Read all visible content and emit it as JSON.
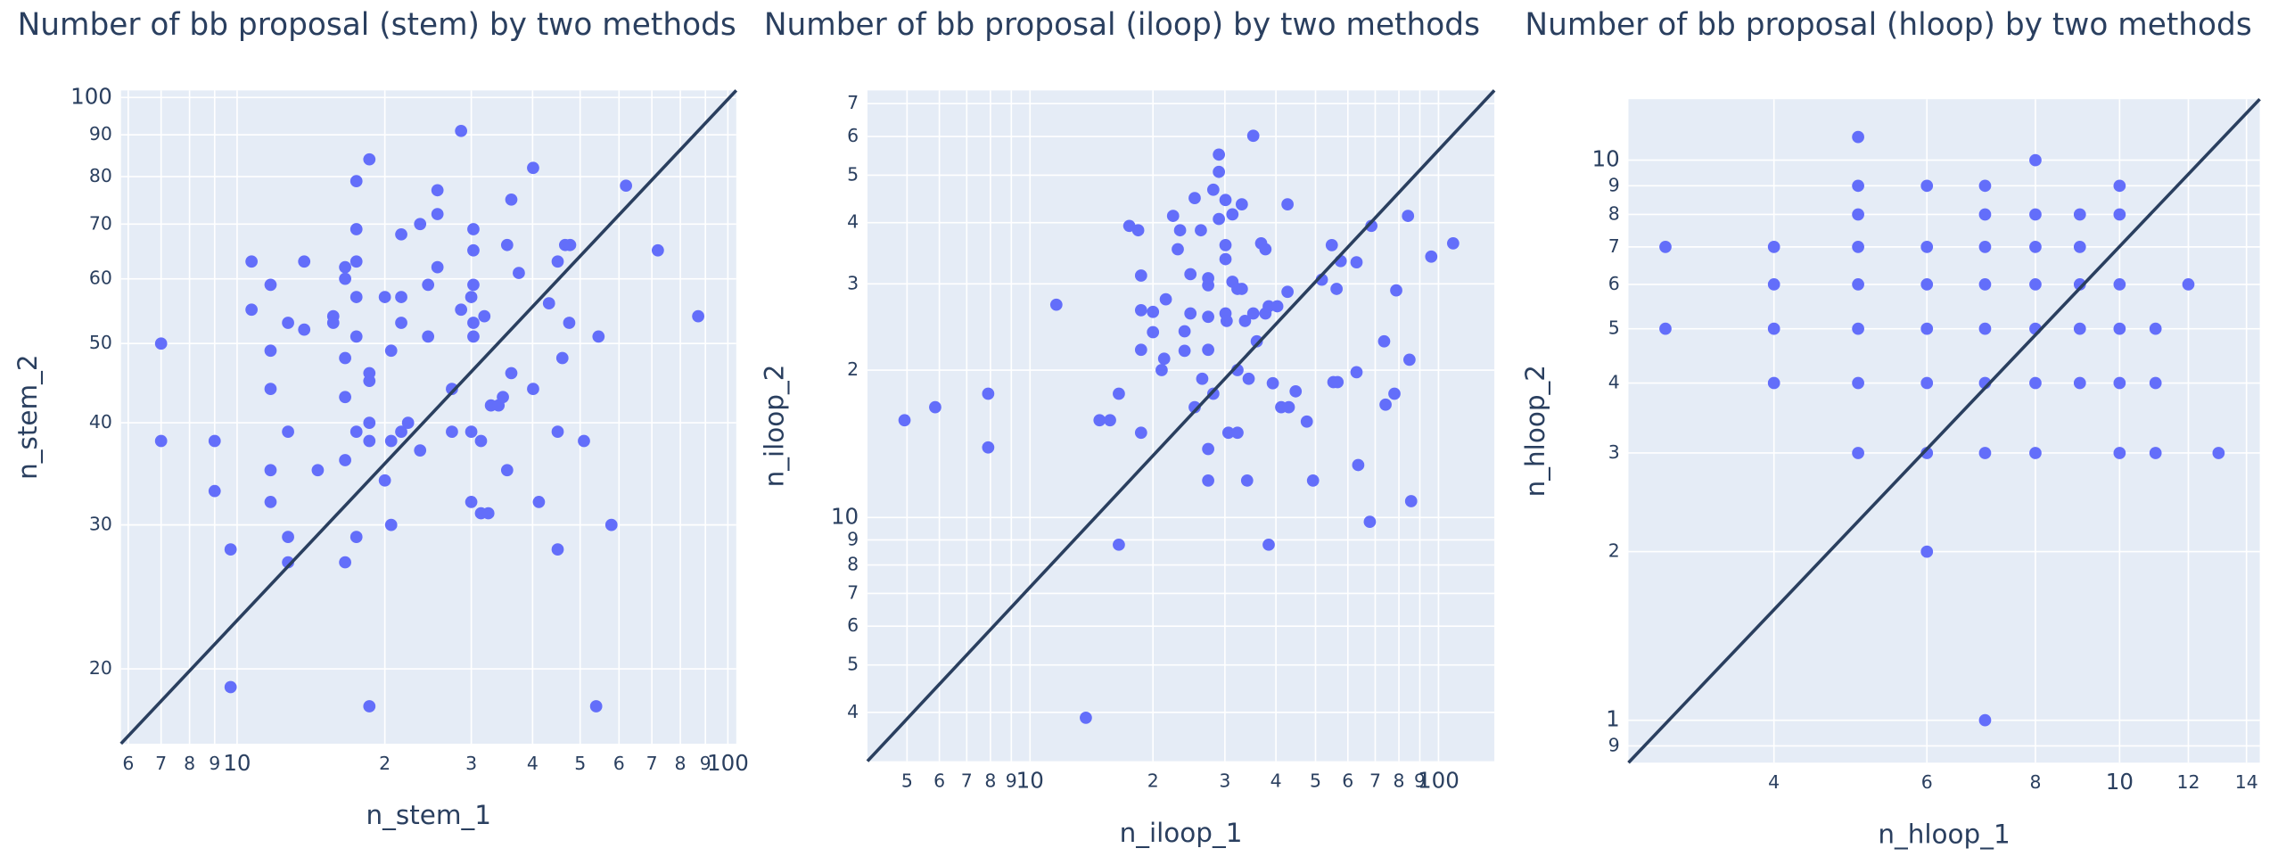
{
  "chart_data": [
    {
      "type": "scatter",
      "title": "Number of bb proposal (stem) by two methods",
      "x_label": "n_stem_1",
      "y_label": "n_stem_2",
      "log_x": true,
      "log_y": true,
      "grid": true,
      "color": "#636efa",
      "xlim": [
        5.8,
        104
      ],
      "ylim": [
        16.2,
        102
      ],
      "xticks": [
        6,
        7,
        8,
        9,
        10,
        {
          "value": 20,
          "label": "2"
        },
        {
          "value": 30,
          "label": "3"
        },
        {
          "value": 40,
          "label": "4"
        },
        {
          "value": 50,
          "label": "5"
        },
        {
          "value": 60,
          "label": "6"
        },
        {
          "value": 70,
          "label": "7"
        },
        {
          "value": 80,
          "label": "8"
        },
        {
          "value": 90,
          "label": "9"
        },
        100
      ],
      "yticks": [
        20,
        30,
        40,
        50,
        60,
        70,
        80,
        90,
        100
      ],
      "x": [
        7,
        7,
        9,
        9,
        9.7,
        9.7,
        10.7,
        10.7,
        11.7,
        11.7,
        11.7,
        11.7,
        11.7,
        12.7,
        12.7,
        12.7,
        12.7,
        13.7,
        13.7,
        14.6,
        15.7,
        15.7,
        16.6,
        16.6,
        16.6,
        16.6,
        16.6,
        16.6,
        17.5,
        17.5,
        17.5,
        17.5,
        17.5,
        17.5,
        17.5,
        18.6,
        18.6,
        18.6,
        18.6,
        18.6,
        18.6,
        20,
        20,
        20.6,
        20.6,
        20.6,
        21.6,
        21.6,
        21.6,
        21.6,
        22.3,
        23.6,
        23.6,
        24.5,
        24.5,
        25.6,
        25.6,
        25.6,
        27.4,
        27.4,
        28.6,
        28.6,
        30,
        30,
        30,
        30.3,
        30.3,
        30.3,
        30.3,
        30.3,
        31.4,
        31.4,
        32.5,
        31.9,
        32.9,
        34.1,
        34.8,
        35.5,
        35.5,
        36.2,
        36.2,
        37.5,
        40.1,
        40.1,
        41.2,
        43.2,
        45,
        45,
        45,
        46,
        46.6,
        47.7,
        47.5,
        50.9,
        54.5,
        53.9,
        57.9,
        62,
        72,
        87
      ],
      "y": [
        50,
        38,
        38,
        33,
        28,
        19,
        63,
        55,
        59,
        49,
        44,
        35,
        32,
        53,
        39,
        29,
        27,
        63,
        52,
        35,
        54,
        53,
        62,
        60,
        48,
        43,
        36,
        27,
        79,
        69,
        63,
        57,
        51,
        39,
        29,
        84,
        46,
        45,
        40,
        38,
        18,
        57,
        34,
        49,
        38,
        30,
        68,
        57,
        53,
        39,
        40,
        70,
        37,
        51,
        59,
        77,
        72,
        62,
        39,
        44,
        91,
        55,
        57,
        39,
        32,
        69,
        65,
        59,
        53,
        51,
        38,
        31,
        31,
        54,
        42,
        42,
        43,
        66,
        35,
        75,
        46,
        61,
        82,
        44,
        32,
        56,
        63,
        39,
        28,
        48,
        66,
        66,
        53,
        38,
        51,
        18,
        30,
        78,
        65,
        54
      ],
      "line": {
        "x": [
          5.8,
          104
        ],
        "y": [
          16.2,
          102
        ],
        "color": "#2a3f5f"
      }
    },
    {
      "type": "scatter",
      "title": "Number of bb proposal (iloop) by two methods",
      "x_label": "n_iloop_1",
      "y_label": "n_iloop_2",
      "log_x": true,
      "log_y": true,
      "grid": true,
      "color": "#636efa",
      "xlim": [
        4,
        137
      ],
      "ylim": [
        3.18,
        74.5
      ],
      "xticks": [
        5,
        6,
        7,
        8,
        9,
        10,
        {
          "value": 20,
          "label": "2"
        },
        {
          "value": 30,
          "label": "3"
        },
        {
          "value": 40,
          "label": "4"
        },
        {
          "value": 50,
          "label": "5"
        },
        {
          "value": 60,
          "label": "6"
        },
        {
          "value": 70,
          "label": "7"
        },
        {
          "value": 80,
          "label": "8"
        },
        {
          "value": 90,
          "label": "9"
        },
        100
      ],
      "yticks": [
        4,
        5,
        6,
        7,
        8,
        9,
        10,
        {
          "value": 20,
          "label": "2"
        },
        {
          "value": 30,
          "label": "3"
        },
        {
          "value": 40,
          "label": "4"
        },
        {
          "value": 50,
          "label": "5"
        },
        {
          "value": 60,
          "label": "6"
        },
        {
          "value": 70,
          "label": "7"
        }
      ],
      "x": [
        4.93,
        5.86,
        7.9,
        7.9,
        11.6,
        13.7,
        14.8,
        15.7,
        16.5,
        16.5,
        17.5,
        18.4,
        18.7,
        18.7,
        18.7,
        18.7,
        20,
        20,
        21,
        21.3,
        21.5,
        22.4,
        23,
        23.3,
        23.9,
        23.9,
        24.7,
        24.7,
        25.3,
        25.3,
        26.4,
        26.2,
        27.3,
        27.3,
        27.3,
        27.3,
        27.3,
        27.3,
        28.1,
        28.1,
        29,
        29,
        29,
        30.1,
        30.1,
        30.1,
        30.1,
        30.3,
        30.6,
        31.3,
        31.3,
        32.2,
        32.2,
        32.2,
        33,
        33,
        33.6,
        34,
        34.3,
        35.2,
        35.2,
        35.9,
        36.8,
        37.7,
        37.7,
        38.4,
        38.4,
        39.3,
        40.3,
        41.2,
        42.7,
        42.7,
        43,
        44.7,
        47.6,
        49.3,
        51.8,
        54.8,
        55.3,
        56.6,
        57.6,
        56.3,
        63,
        63,
        63.6,
        67.9,
        68.5,
        73.6,
        74.2,
        78,
        78.8,
        84.2,
        84.9,
        85.7,
        96,
        108.6
      ],
      "y": [
        15.8,
        16.8,
        17.9,
        13.9,
        27.2,
        3.9,
        15.8,
        15.8,
        8.8,
        17.9,
        39.4,
        38.6,
        31.2,
        26.5,
        22,
        14.9,
        26.3,
        23.9,
        20,
        21.1,
        27.9,
        41.3,
        35.3,
        38.6,
        21.9,
        24,
        31.4,
        26.1,
        44.9,
        16.8,
        19.2,
        38.6,
        30.8,
        29.8,
        25.7,
        22,
        13.8,
        11.9,
        46.7,
        17.9,
        55.1,
        50.8,
        40.7,
        44.5,
        36,
        33.7,
        26.1,
        25.2,
        14.9,
        41.6,
        30.3,
        29.3,
        20,
        14.9,
        43.6,
        29.3,
        25.2,
        11.9,
        19.2,
        60.2,
        26.1,
        22.9,
        36.3,
        35.3,
        26.1,
        27,
        8.8,
        18.8,
        27,
        16.8,
        43.6,
        28.9,
        16.8,
        18.1,
        15.7,
        11.9,
        30.6,
        36,
        18.9,
        18.9,
        33.4,
        29.3,
        19.8,
        33.2,
        12.8,
        9.8,
        39.4,
        22.9,
        17,
        17.9,
        29.1,
        41.3,
        21,
        10.8,
        34.1,
        36.3
      ],
      "line": {
        "x": [
          4,
          137
        ],
        "y": [
          3.18,
          74.5
        ],
        "color": "#2a3f5f"
      }
    },
    {
      "type": "scatter",
      "title": "Number of bb proposal (hloop) by two methods",
      "x_label": "n_hloop_1",
      "y_label": "n_hloop_2",
      "log_x": true,
      "log_y": true,
      "grid": true,
      "color": "#636efa",
      "xlim": [
        2.72,
        14.5
      ],
      "ylim": [
        0.84,
        12.85
      ],
      "xticks": [
        4,
        6,
        8,
        10,
        12,
        14
      ],
      "yticks": [
        {
          "value": 0.9,
          "label": "9"
        },
        1,
        2,
        3,
        4,
        5,
        6,
        7,
        8,
        9,
        10
      ],
      "x": [
        3,
        3,
        4,
        4,
        4,
        4,
        5,
        5,
        5,
        5,
        5,
        5,
        5,
        5,
        6,
        6,
        6,
        6,
        6,
        6,
        6,
        7,
        7,
        7,
        7,
        7,
        7,
        7,
        7,
        8,
        8,
        8,
        8,
        8,
        8,
        8,
        9,
        9,
        9,
        9,
        9,
        10,
        10,
        10,
        10,
        10,
        10,
        11,
        11,
        11,
        12,
        13
      ],
      "y": [
        7,
        5,
        7,
        6,
        5,
        4,
        11,
        9,
        8,
        7,
        6,
        5,
        4,
        3,
        9,
        7,
        6,
        5,
        4,
        3,
        2,
        9,
        8,
        7,
        6,
        5,
        4,
        3,
        1,
        10,
        8,
        7,
        6,
        5,
        4,
        3,
        8,
        7,
        6,
        5,
        4,
        9,
        8,
        6,
        5,
        4,
        3,
        5,
        4,
        3,
        6,
        3
      ],
      "line": {
        "x": [
          2.72,
          14.5
        ],
        "y": [
          0.84,
          12.85
        ],
        "color": "#2a3f5f"
      }
    }
  ]
}
